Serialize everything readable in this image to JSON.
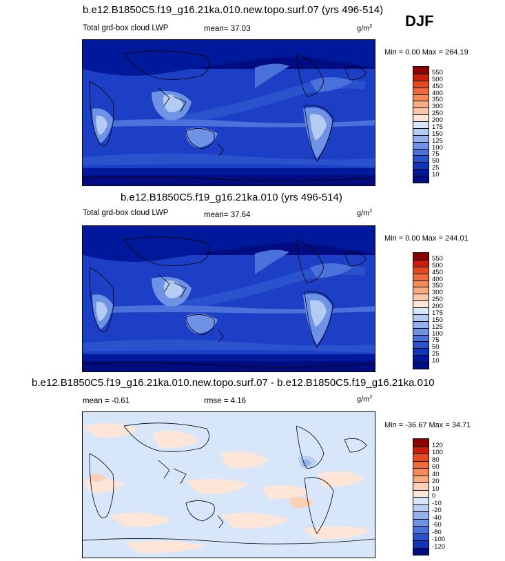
{
  "season": "DJF",
  "units": {
    "base": "g/m",
    "exp": "2"
  },
  "panels": [
    {
      "title": "b.e12.B1850C5.f19_g16.21ka.010.new.topo.surf.07 (yrs 496-514)",
      "variable": "Total grd-box cloud LWP",
      "mean_label": "mean=",
      "mean": "37.03",
      "minmax": "Min =   0.00 Max = 264.19",
      "colorbar": {
        "levels": [
          "550",
          "500",
          "450",
          "400",
          "350",
          "300",
          "250",
          "200",
          "175",
          "150",
          "125",
          "100",
          "75",
          "50",
          "25",
          "10"
        ],
        "colors": [
          "#8b0000",
          "#c81e0a",
          "#e64820",
          "#f06a3a",
          "#f58a58",
          "#f8aa80",
          "#fcc8a8",
          "#fde8d8",
          "#d7e6f8",
          "#b4ccf2",
          "#93b2ec",
          "#6e92e4",
          "#4a72da",
          "#2a52cc",
          "#1234b8",
          "#00189a",
          "#000c80"
        ]
      }
    },
    {
      "title": "b.e12.B1850C5.f19_g16.21ka.010 (yrs 496-514)",
      "variable": "Total grd-box cloud LWP",
      "mean_label": "mean=",
      "mean": "37.64",
      "minmax": "Min =   0.00 Max = 244.01",
      "colorbar": {
        "levels": [
          "550",
          "500",
          "450",
          "400",
          "350",
          "300",
          "250",
          "200",
          "175",
          "150",
          "125",
          "100",
          "75",
          "50",
          "25",
          "10"
        ],
        "colors": [
          "#8b0000",
          "#c81e0a",
          "#e64820",
          "#f06a3a",
          "#f58a58",
          "#f8aa80",
          "#fcc8a8",
          "#fde8d8",
          "#d7e6f8",
          "#b4ccf2",
          "#93b2ec",
          "#6e92e4",
          "#4a72da",
          "#2a52cc",
          "#1234b8",
          "#00189a",
          "#000c80"
        ]
      }
    },
    {
      "title": "b.e12.B1850C5.f19_g16.21ka.010.new.topo.surf.07 - b.e12.B1850C5.f19_g16.21ka.010",
      "mean_label": "mean =",
      "mean": "-0.61",
      "rmse_label": "rmse =",
      "rmse": "4.16",
      "minmax": "Min = -36.67 Max =  34.71",
      "colorbar": {
        "levels": [
          "120",
          "100",
          "80",
          "60",
          "40",
          "20",
          "10",
          "0",
          "-10",
          "-20",
          "-40",
          "-60",
          "-80",
          "-100",
          "-120"
        ],
        "colors": [
          "#8b0000",
          "#c81e0a",
          "#e64820",
          "#f06a3a",
          "#f58a58",
          "#f8aa80",
          "#fcd0b4",
          "#fde6d8",
          "#d8e6fa",
          "#b8cff2",
          "#93b2ec",
          "#6e92e4",
          "#4a72da",
          "#2a52cc",
          "#1234b8",
          "#000c80"
        ]
      }
    }
  ]
}
